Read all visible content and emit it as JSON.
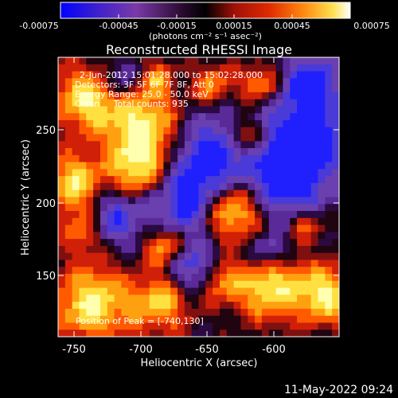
{
  "colorbar": {
    "tick_labels": [
      "-0.00075",
      "-0.00045",
      "-0.00015",
      "0.00015",
      "0.00045",
      "0.00075"
    ],
    "units_line": "(photons cm⁻² s⁻¹ asec⁻²)"
  },
  "title": "Reconstructed RHESSI Image",
  "info": {
    "time_range": "2-Jun-2012 15:01:28.000 to 15:02:28.000",
    "detectors": "Detectors: 3F 5F 6F 7F 8F, Att 0",
    "energy": "Energy Range: 25.0 - 50.0 keV",
    "clean": "Clean     Total counts: 935",
    "peak": "Position of Peak = [-740,130]"
  },
  "axes": {
    "xlabel": "Heliocentric X (arcsec)",
    "ylabel": "Heliocentric Y (arcsec)",
    "x_ticks": [
      "-750",
      "-700",
      "-650",
      "-600"
    ],
    "y_ticks": [
      "150",
      "200",
      "250"
    ]
  },
  "timestamp": "11-May-2022 09:24",
  "colors": {
    "background": "#000000",
    "foreground": "#ffffff",
    "colormap": [
      "#0000ff",
      "#4a2aa6",
      "#6a3aa8",
      "#000000",
      "#c01a10",
      "#ff4000",
      "#ff9a10",
      "#ffee60",
      "#ffffff"
    ]
  }
}
